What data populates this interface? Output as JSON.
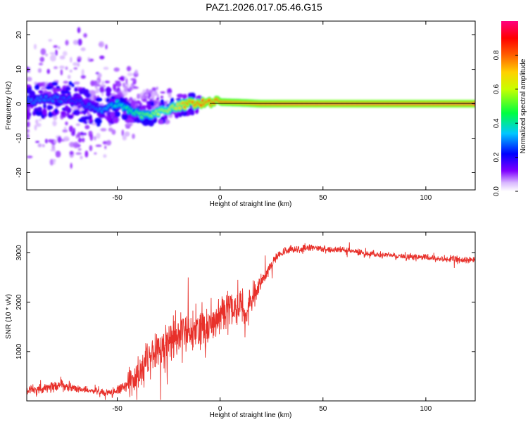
{
  "title": "PAZ1.2026.017.05.46.G15",
  "colors": {
    "snr_line": "#e8302a",
    "frame": "#000000",
    "center_line": "#000000"
  },
  "chart_data": [
    {
      "type": "heatmap",
      "xlabel": "Height of straight line (km)",
      "ylabel": "Frequency (Hz)",
      "xlim": [
        -94,
        124
      ],
      "ylim": [
        -25,
        24
      ],
      "xticks": [
        -50,
        0,
        50,
        100
      ],
      "xtick_labels": [
        "-50",
        "0",
        "50",
        "100"
      ],
      "yticks": [
        -20,
        -10,
        0,
        10,
        20
      ],
      "ytick_labels": [
        "-20",
        "-10",
        "0",
        "10",
        "20"
      ],
      "grid": false,
      "colorbar": {
        "label": "Normalized spectral amplitude",
        "range": [
          0,
          1
        ],
        "ticks": [
          0.0,
          0.2,
          0.4,
          0.6,
          0.8
        ],
        "tick_labels": [
          "0.0",
          "0.2",
          "0.4",
          "0.6",
          "0.8"
        ],
        "colormap": [
          "#ffffff",
          "#7f00ff",
          "#0000ff",
          "#00c8ff",
          "#00ff00",
          "#ffff00",
          "#ff8000",
          "#ff0000",
          "#ff0080"
        ]
      },
      "ridge": {
        "description_free": true,
        "x": [
          -90,
          -80,
          -70,
          -60,
          -50,
          -45,
          -40,
          -35,
          -30,
          -25,
          -20,
          -15,
          -10,
          -5,
          0,
          10,
          20,
          30,
          50,
          80,
          124
        ],
        "y": [
          1.0,
          1.5,
          1.0,
          -2.0,
          0.0,
          -2.0,
          -3.0,
          -3.0,
          -2.5,
          -1.5,
          -0.5,
          0.0,
          0.0,
          0.5,
          0.5,
          0.3,
          0.0,
          0.0,
          0.0,
          0.0,
          0.0
        ],
        "amplitude": [
          0.3,
          0.3,
          0.25,
          0.3,
          0.4,
          0.45,
          0.5,
          0.55,
          0.6,
          0.65,
          0.7,
          0.85,
          0.9,
          0.9,
          0.92,
          0.92,
          0.95,
          0.97,
          0.98,
          0.97,
          0.97
        ]
      }
    },
    {
      "type": "line",
      "xlabel": "Height of straight line (km)",
      "ylabel": "SNR (10 * v/v)",
      "xlim": [
        -94,
        124
      ],
      "ylim": [
        0,
        3420
      ],
      "xticks": [
        -50,
        0,
        50,
        100
      ],
      "xtick_labels": [
        "-50",
        "0",
        "50",
        "100"
      ],
      "yticks": [
        1000,
        2000,
        3000
      ],
      "ytick_labels": [
        "1000",
        "2000",
        "3000"
      ],
      "grid": false,
      "series": [
        {
          "color": "#e8302a",
          "x": [
            -94,
            -85,
            -78,
            -70,
            -60,
            -52,
            -46,
            -42,
            -38,
            -34,
            -30,
            -26,
            -22,
            -18,
            -14,
            -10,
            -6,
            -2,
            2,
            6,
            10,
            13,
            16,
            20,
            24,
            28,
            34,
            40,
            45,
            50,
            60,
            70,
            80,
            90,
            100,
            110,
            124
          ],
          "mean": [
            220,
            250,
            330,
            240,
            200,
            160,
            300,
            450,
            650,
            880,
            1050,
            1180,
            1280,
            1350,
            1420,
            1480,
            1560,
            1650,
            1800,
            1920,
            1950,
            1720,
            2080,
            2400,
            2700,
            2950,
            3060,
            3080,
            3100,
            3080,
            3050,
            3000,
            2950,
            2930,
            2900,
            2870,
            2850
          ],
          "noise": [
            130,
            140,
            170,
            140,
            110,
            120,
            250,
            400,
            550,
            650,
            650,
            650,
            650,
            650,
            650,
            650,
            650,
            620,
            600,
            600,
            550,
            450,
            400,
            250,
            180,
            140,
            120,
            120,
            110,
            110,
            110,
            100,
            100,
            100,
            100,
            100,
            100
          ]
        }
      ]
    }
  ]
}
